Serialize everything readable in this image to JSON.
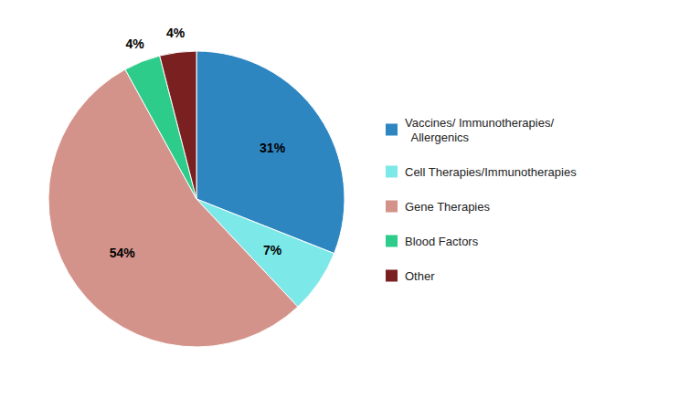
{
  "chart_data": {
    "type": "pie",
    "categories": [
      "Vaccines/ Immunotherapies/\n  Allergenics",
      "Cell Therapies/Immunotherapies",
      "Gene Therapies",
      "Blood Factors",
      "Other"
    ],
    "values": [
      31,
      7,
      54,
      4,
      4
    ],
    "value_labels": [
      "31%",
      "7%",
      "54%",
      "4%",
      "4%"
    ],
    "colors": [
      "#2E86C1",
      "#7DE8E8",
      "#D4938A",
      "#2ECC8A",
      "#7B2020"
    ],
    "data_labels": true,
    "legend": "right"
  }
}
